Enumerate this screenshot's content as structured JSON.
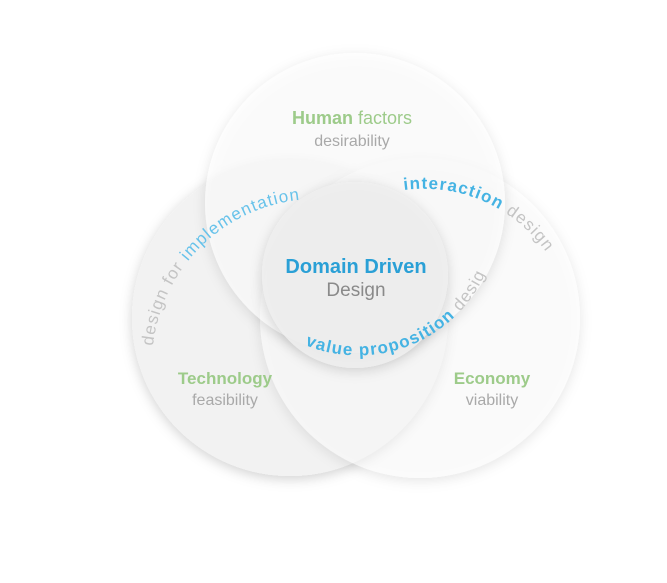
{
  "colors": {
    "green": "#9dcb8a",
    "blue": "#45b3e3",
    "deep_blue": "#2aa0d6",
    "gray_text": "#a9a9a9",
    "dark_gray_text": "#8a8a8a",
    "arc_blue": "#67c2ea",
    "arc_gray": "#c4c4c4"
  },
  "circles": {
    "human": {
      "title_strong": "Human",
      "title_rest": " factors",
      "subtitle": "desirability"
    },
    "technology": {
      "title_strong": "Technology",
      "subtitle": "feasibility"
    },
    "economy": {
      "title_strong": "Economy",
      "subtitle": "viability"
    }
  },
  "center": {
    "line1": "Domain Driven",
    "line2": "Design"
  },
  "arcs": {
    "implementation": {
      "prefix": "design for ",
      "highlight": "implementation"
    },
    "interaction": {
      "highlight": "interaction",
      "suffix": " design"
    },
    "value": {
      "highlight": "value proposition",
      "suffix": " design"
    }
  }
}
